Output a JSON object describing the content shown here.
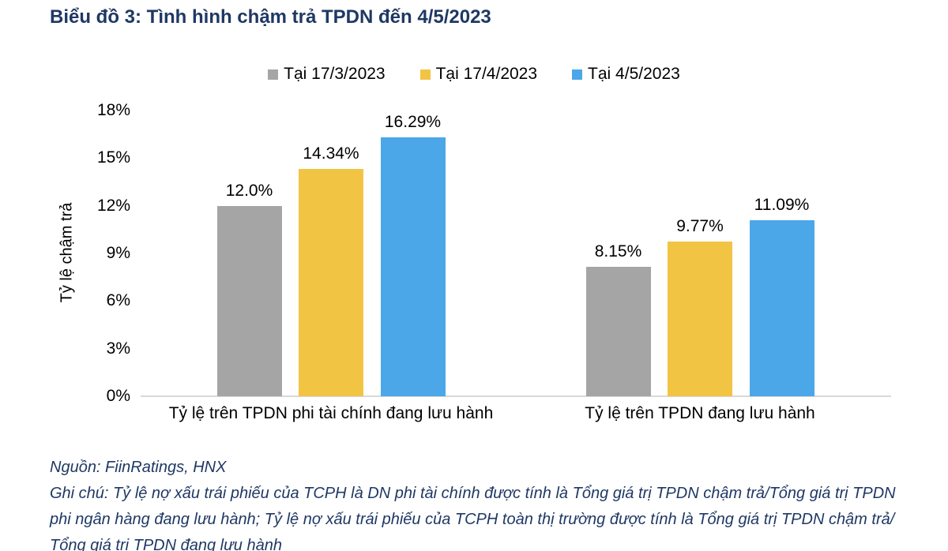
{
  "title": "Biểu đồ 3: Tình hình chậm trả TPDN đến 4/5/2023",
  "colors": {
    "title_navy": "#1F3864",
    "axis_line": "#D9D9D9",
    "text_black": "#000000"
  },
  "chart_data": {
    "type": "bar",
    "title": "Biểu đồ 3: Tình hình chậm trả TPDN đến 4/5/2023",
    "xlabel": "",
    "ylabel": "Tỷ lệ chậm trả",
    "ylim": [
      0,
      18
    ],
    "y_ticks": [
      "0%",
      "3%",
      "6%",
      "9%",
      "12%",
      "15%",
      "18%"
    ],
    "y_tick_values": [
      0,
      3,
      6,
      9,
      12,
      15,
      18
    ],
    "grid": false,
    "legend_position": "top-center",
    "categories": [
      "Tỷ lệ trên TPDN phi tài chính đang lưu hành",
      "Tỷ lệ trên TPDN đang lưu hành"
    ],
    "series": [
      {
        "name": "Tại 17/3/2023",
        "color": "#A5A5A5",
        "values": [
          12.0,
          8.15
        ],
        "labels": [
          "12.0%",
          "8.15%"
        ]
      },
      {
        "name": "Tại 17/4/2023",
        "color": "#F2C443",
        "values": [
          14.34,
          9.77
        ],
        "labels": [
          "14.34%",
          "9.77%"
        ]
      },
      {
        "name": "Tại 4/5/2023",
        "color": "#4BA7E8",
        "values": [
          16.29,
          11.09
        ],
        "labels": [
          "16.29%",
          "11.09%"
        ]
      }
    ]
  },
  "footer": {
    "source": "Nguồn: FiinRatings, HNX",
    "note_lines": [
      "Ghi chú: Tỷ lệ nợ xấu trái phiếu của TCPH là DN phi tài chính được tính là Tổng giá trị TPDN chậm trả/Tổng giá trị TPDN",
      "phi ngân hàng đang lưu hành; Tỷ lệ nợ xấu trái phiếu của TCPH toàn thị trường được tính là Tổng giá trị TPDN chậm trả/",
      "Tổng giá trị TPDN đang lưu hành"
    ]
  }
}
